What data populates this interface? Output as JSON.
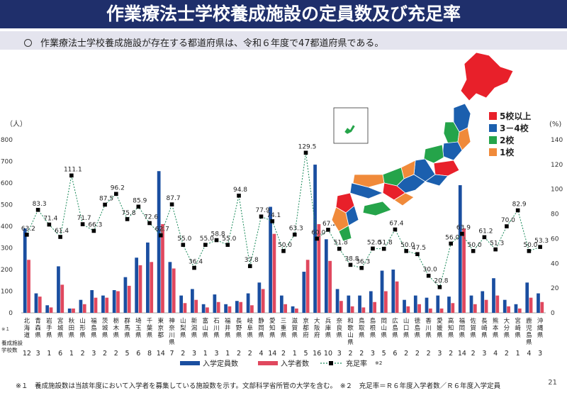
{
  "title": "作業療法士学校養成施設の定員数及び充足率",
  "subtitle": "作業療法士学校養成施設が存在する都道府県は、令和６年度で47都道府県である。",
  "footnote": "※１　養成施設数は当該年度において入学者を募集している施設数を示す。文部科学省所管の大学を含む。　※２　充足率＝Ｒ６年度入学者数／Ｒ６年度入学定員",
  "page_number": "21",
  "map_legend": [
    {
      "label": "5校以上",
      "color": "#e8202a"
    },
    {
      "label": "3－4校",
      "color": "#1b5fae"
    },
    {
      "label": "2校",
      "color": "#25a44a"
    },
    {
      "label": "1校",
      "color": "#f08a3a"
    }
  ],
  "chart_data": {
    "type": "bar",
    "left_axis_unit": "（人）",
    "right_axis_unit": "(%)",
    "left_ylim": [
      0,
      800
    ],
    "left_ticks": [
      0,
      100,
      200,
      300,
      400,
      500,
      600,
      700,
      800
    ],
    "right_ylim": [
      0,
      140
    ],
    "right_ticks": [
      0,
      20,
      40,
      60,
      80,
      100,
      120,
      140
    ],
    "schools_row_label": "養成施設学校数",
    "schools_row_note": "※１",
    "categories": [
      "北海道",
      "青森県",
      "岩手県",
      "宮城県",
      "秋田県",
      "山形県",
      "福島県",
      "茨城県",
      "栃木県",
      "群馬県",
      "埼玉県",
      "千葉県",
      "東京都",
      "神奈川県",
      "山梨県",
      "新潟県",
      "富山県",
      "石川県",
      "福井県",
      "長野県",
      "岐阜県",
      "静岡県",
      "愛知県",
      "三重県",
      "滋賀県",
      "京都府",
      "大阪府",
      "兵庫県",
      "奈良県",
      "和歌山県",
      "鳥取県",
      "島根県",
      "岡山県",
      "広島県",
      "山口県",
      "徳島県",
      "香川県",
      "愛媛県",
      "高知県",
      "福岡県",
      "佐賀県",
      "長崎県",
      "熊本県",
      "大分県",
      "宮崎県",
      "鹿児島県",
      "沖縄県"
    ],
    "schools": [
      "12",
      "3",
      "1",
      "6",
      "1",
      "2",
      "3",
      "2",
      "2",
      "5",
      "6",
      "8",
      "14",
      "7",
      "2",
      "3",
      "1",
      "3",
      "1",
      "2",
      "2",
      "4",
      "14",
      "2",
      "1",
      "5",
      "16",
      "10",
      "3",
      "2",
      "2",
      "3",
      "5",
      "6",
      "2",
      "2",
      "2",
      "3",
      "2",
      "14",
      "2",
      "3",
      "4",
      "2",
      "1",
      "4",
      "3"
    ],
    "series": [
      {
        "name": "入学定員数",
        "color": "#1a4ea0",
        "values": [
          390,
          90,
          35,
          215,
          20,
          60,
          105,
          80,
          105,
          165,
          255,
          325,
          655,
          235,
          80,
          110,
          40,
          85,
          40,
          55,
          90,
          140,
          490,
          80,
          30,
          190,
          685,
          340,
          110,
          80,
          80,
          100,
          195,
          200,
          60,
          80,
          70,
          80,
          75,
          590,
          80,
          100,
          160,
          60,
          40,
          140,
          90
        ]
      },
      {
        "name": "入学者数",
        "color": "#e0485e",
        "values": [
          245,
          75,
          25,
          130,
          20,
          40,
          70,
          70,
          100,
          125,
          220,
          235,
          410,
          205,
          45,
          60,
          25,
          50,
          30,
          50,
          35,
          110,
          365,
          40,
          20,
          245,
          410,
          240,
          55,
          30,
          25,
          50,
          100,
          145,
          30,
          40,
          20,
          20,
          45,
          390,
          40,
          60,
          80,
          30,
          20,
          70,
          50
        ]
      },
      {
        "name": "充足率",
        "axis": "right",
        "color": "#1a8a5a",
        "values": [
          63.2,
          83.3,
          71.4,
          61.4,
          111.1,
          71.7,
          66.3,
          87.5,
          96.2,
          75.8,
          85.9,
          72.6,
          62.7,
          87.7,
          55.0,
          36.4,
          55.0,
          58.8,
          55.0,
          94.8,
          37.8,
          77.9,
          74.1,
          50.0,
          63.3,
          129.5,
          60.0,
          67.2,
          51.8,
          38.8,
          36.3,
          52.0,
          51.8,
          67.4,
          50.0,
          47.5,
          30.0,
          20.8,
          56.0,
          63.9,
          50.0,
          61.2,
          51.3,
          70.0,
          82.9,
          50.0,
          53.3
        ],
        "labels": [
          "63.2",
          "83.3",
          "71.4",
          "61.4",
          "111.1",
          "71.7",
          "66.3",
          "87.5",
          "96.2",
          "75.8",
          "85.9",
          "72.6",
          "62.7",
          "87.7",
          "55.0",
          "36.4",
          "55.0",
          "58.8",
          "55.0",
          "94.8",
          "37.8",
          "77.9",
          "74.1",
          "50.0",
          "63.3",
          "129.5",
          "60.0",
          "67.2",
          "51.8",
          "38.8",
          "36.3",
          "52.0",
          "51.8",
          "67.4",
          "50.0",
          "47.5",
          "30.0",
          "20.8",
          "56.0",
          "63.9",
          "50.0",
          "61.2",
          "51.3",
          "70.0",
          "82.9",
          "50.0",
          "53.3"
        ]
      }
    ],
    "legend_position": "bottom"
  }
}
